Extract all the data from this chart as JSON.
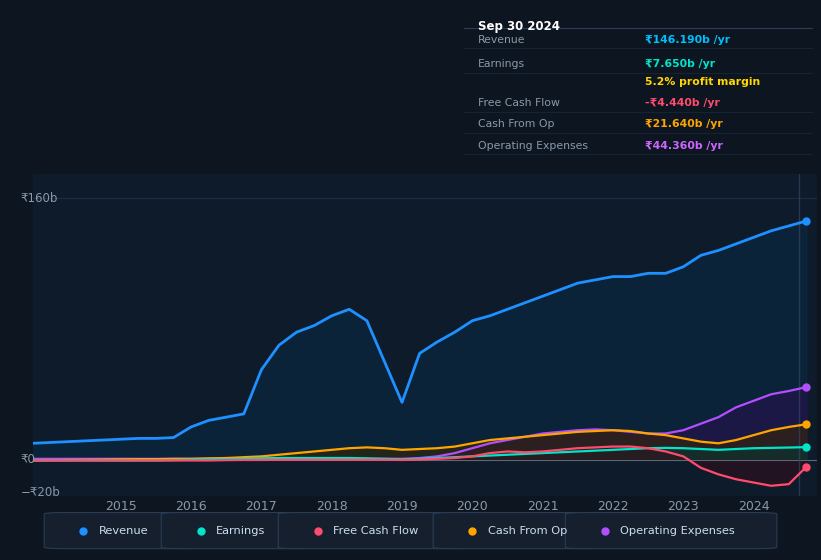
{
  "bg_color": "#0d1520",
  "chart_bg": "#0d1b2a",
  "grid_color": "#1e3050",
  "title_date": "Sep 30 2024",
  "tooltip": {
    "Revenue": {
      "value": "₹146.190b /yr",
      "color": "#00bfff"
    },
    "Earnings": {
      "value": "₹7.650b /yr",
      "color": "#00e5c8"
    },
    "profit_margin": "5.2% profit margin",
    "Free Cash Flow": {
      "value": "-₹4.440b /yr",
      "color": "#ff4c6e"
    },
    "Cash From Op": {
      "value": "₹21.640b /yr",
      "color": "#ffa500"
    },
    "Operating Expenses": {
      "value": "₹44.360b /yr",
      "color": "#cc66ff"
    }
  },
  "years": [
    2013.75,
    2014.0,
    2014.25,
    2014.5,
    2014.75,
    2015.0,
    2015.25,
    2015.5,
    2015.75,
    2016.0,
    2016.25,
    2016.5,
    2016.75,
    2017.0,
    2017.25,
    2017.5,
    2017.75,
    2018.0,
    2018.25,
    2018.5,
    2018.75,
    2019.0,
    2019.25,
    2019.5,
    2019.75,
    2020.0,
    2020.25,
    2020.5,
    2020.75,
    2021.0,
    2021.25,
    2021.5,
    2021.75,
    2022.0,
    2022.25,
    2022.5,
    2022.75,
    2023.0,
    2023.25,
    2023.5,
    2023.75,
    2024.0,
    2024.25,
    2024.5,
    2024.75
  ],
  "revenue": [
    10,
    10.5,
    11,
    11.5,
    12,
    12.5,
    13,
    13,
    13.5,
    20,
    24,
    26,
    28,
    55,
    70,
    78,
    82,
    88,
    92,
    85,
    60,
    35,
    65,
    72,
    78,
    85,
    88,
    92,
    96,
    100,
    104,
    108,
    110,
    112,
    112,
    114,
    114,
    118,
    125,
    128,
    132,
    136,
    140,
    143,
    146
  ],
  "earnings": [
    -0.5,
    -0.5,
    -0.5,
    -0.5,
    -0.5,
    -0.5,
    -0.5,
    -0.5,
    -0.3,
    0,
    0.2,
    0.3,
    0.5,
    0.8,
    1.0,
    1.0,
    1.0,
    1.0,
    1.0,
    0.8,
    0.5,
    0.2,
    0.5,
    1.0,
    1.5,
    2.0,
    2.5,
    3.0,
    3.5,
    4.0,
    4.5,
    5.0,
    5.5,
    6.0,
    6.5,
    7.0,
    7.2,
    7.0,
    6.5,
    6.0,
    6.5,
    7.0,
    7.2,
    7.4,
    7.65
  ],
  "free_cash_flow": [
    -0.5,
    -0.5,
    -0.5,
    -0.5,
    -0.5,
    -0.5,
    -0.5,
    -0.5,
    -0.5,
    -0.5,
    -0.5,
    -0.3,
    -0.2,
    -0.2,
    -0.1,
    -0.1,
    -0.1,
    -0.1,
    -0.1,
    -0.1,
    -0.1,
    -0.2,
    0.0,
    0.5,
    1.0,
    2.0,
    4.0,
    5.0,
    4.5,
    5.0,
    6.0,
    7.0,
    7.5,
    8.0,
    8.0,
    7.0,
    5.0,
    2.0,
    -5.0,
    -9.0,
    -12.0,
    -14.0,
    -16.0,
    -15.0,
    -4.44
  ],
  "cash_from_op": [
    -0.5,
    -0.3,
    -0.2,
    -0.1,
    0.0,
    0.2,
    0.3,
    0.3,
    0.5,
    0.5,
    0.8,
    1.0,
    1.5,
    2.0,
    3.0,
    4.0,
    5.0,
    6.0,
    7.0,
    7.5,
    7.0,
    6.0,
    6.5,
    7.0,
    8.0,
    10.0,
    12.0,
    13.0,
    14.0,
    15.0,
    16.0,
    17.0,
    17.5,
    18.0,
    17.5,
    16.0,
    15.0,
    13.0,
    11.0,
    10.0,
    12.0,
    15.0,
    18.0,
    20.0,
    21.64
  ],
  "operating_expenses": [
    0.5,
    0.5,
    0.5,
    0.5,
    0.5,
    0.5,
    0.5,
    0.5,
    0.5,
    0.5,
    0.5,
    0.5,
    0.5,
    0.5,
    0.5,
    0.5,
    0.5,
    0.5,
    0.5,
    0.5,
    0.5,
    0.5,
    1.0,
    2.0,
    4.0,
    7.0,
    10.0,
    12.0,
    14.0,
    16.0,
    17.0,
    18.0,
    18.5,
    18.0,
    17.0,
    16.0,
    16.0,
    18.0,
    22.0,
    26.0,
    32.0,
    36.0,
    40.0,
    42.0,
    44.36
  ],
  "colors": {
    "revenue": "#1e90ff",
    "earnings": "#00e5c8",
    "free_cash_flow": "#ff4c6e",
    "cash_from_op": "#ffa500",
    "operating_expenses": "#b44fff"
  },
  "ylim": [
    -22,
    175
  ],
  "xlabel_ticks": [
    2015,
    2016,
    2017,
    2018,
    2019,
    2020,
    2021,
    2022,
    2023,
    2024
  ],
  "legend_items": [
    {
      "label": "Revenue",
      "color": "#1e90ff"
    },
    {
      "label": "Earnings",
      "color": "#00e5c8"
    },
    {
      "label": "Free Cash Flow",
      "color": "#ff4c6e"
    },
    {
      "label": "Cash From Op",
      "color": "#ffa500"
    },
    {
      "label": "Operating Expenses",
      "color": "#b44fff"
    }
  ]
}
